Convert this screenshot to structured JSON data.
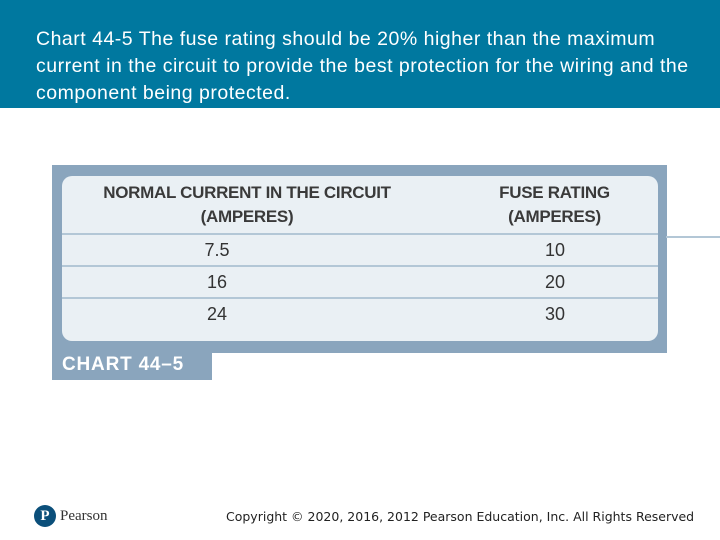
{
  "slide": {
    "title": "Chart 44-5 The fuse rating should be 20% higher than the maximum current in the circuit to provide the best protection for the wiring and the component being protected."
  },
  "table": {
    "columns": [
      {
        "line1": "NORMAL CURRENT IN THE CIRCUIT",
        "line2": "(AMPERES)"
      },
      {
        "line1": "FUSE RATING",
        "line2": "(AMPERES)"
      }
    ],
    "rows": [
      [
        "7.5",
        "10"
      ],
      [
        "16",
        "20"
      ],
      [
        "24",
        "30"
      ]
    ],
    "caption": "CHART 44–5"
  },
  "footer": {
    "logo_mark": "P",
    "logo_text": "Pearson",
    "copyright": "Copyright © 2020, 2016, 2012 Pearson Education, Inc. All Rights Reserved"
  },
  "colors": {
    "header_bg": "#00789f",
    "figure_frame": "#8aa5bd",
    "table_bg": "#eaf0f4"
  }
}
